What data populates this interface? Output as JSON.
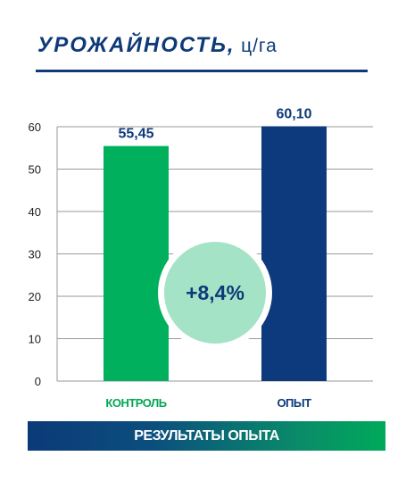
{
  "title": {
    "main": "УРОЖАЙНОСТЬ,",
    "unit": "ц/га"
  },
  "chart_data": {
    "type": "bar",
    "categories": [
      "КОНТРОЛЬ",
      "ОПЫТ"
    ],
    "values": [
      55.45,
      60.1
    ],
    "value_labels": [
      "55,45",
      "60,10"
    ],
    "ylim": [
      0,
      60
    ],
    "yticks": [
      "0",
      "10",
      "20",
      "30",
      "40",
      "50",
      "60"
    ],
    "grid": true,
    "annotation": "+8,4%",
    "colors": {
      "control": "#00b05c",
      "experiment": "#0c3a7c",
      "badge": "#a5e3c7",
      "category_control": "#00a853",
      "category_experiment": "#0c3a7c",
      "value_label": "#0e3a78"
    }
  },
  "banner": {
    "label": "РЕЗУЛЬТАТЫ ОПЫТА"
  }
}
